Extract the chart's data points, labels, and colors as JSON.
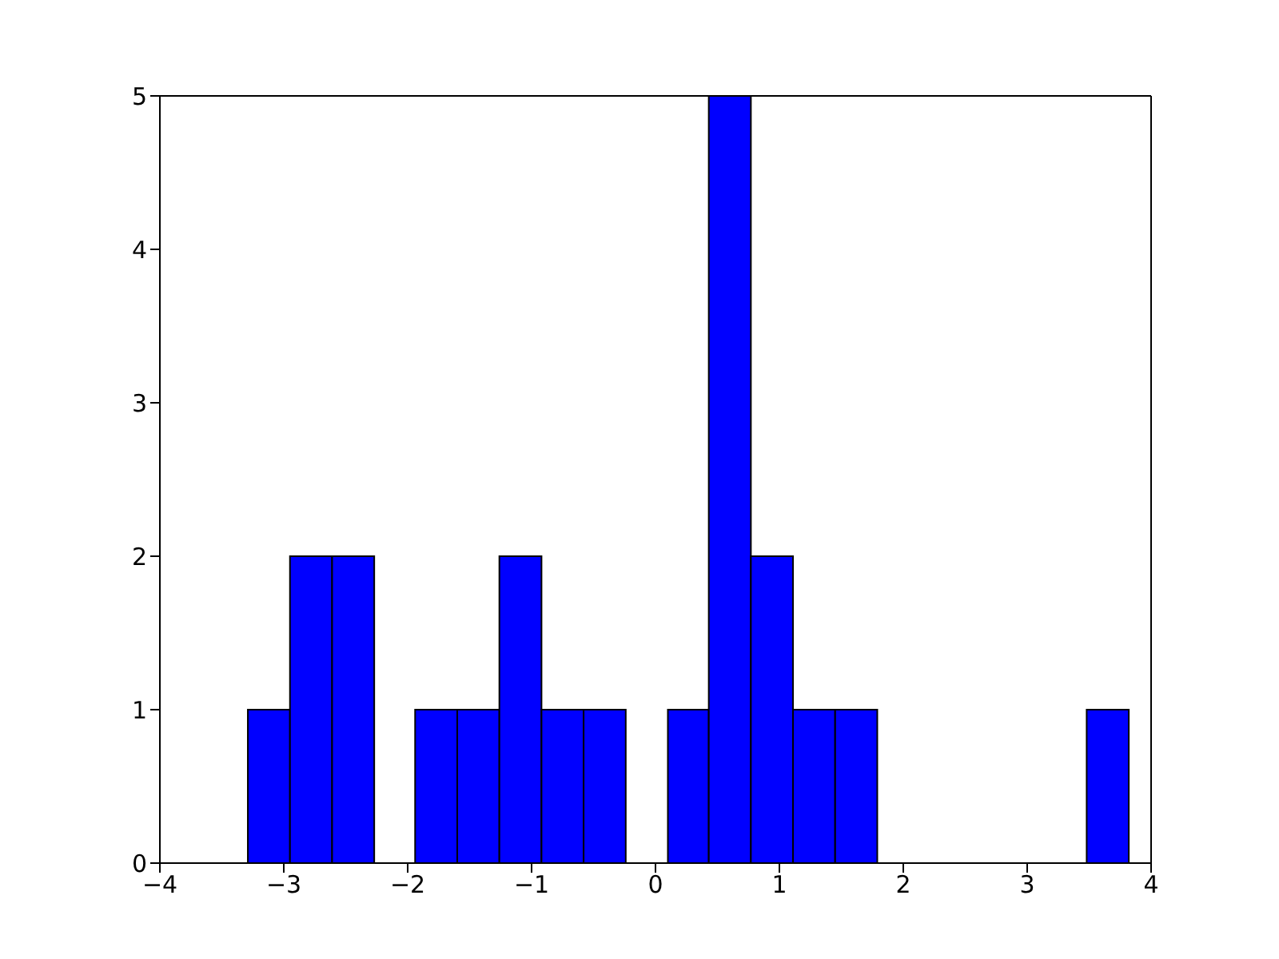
{
  "chart_data": {
    "type": "histogram",
    "bins": [
      -3.29,
      -2.95,
      -2.61,
      -2.27,
      -1.94,
      -1.6,
      -1.26,
      -0.92,
      -0.58,
      -0.24,
      0.1,
      0.43,
      0.77,
      1.11,
      1.45,
      1.79,
      3.48,
      3.82
    ],
    "values": [
      1,
      2,
      2,
      0,
      1,
      1,
      2,
      1,
      1,
      0,
      1,
      5,
      2,
      1,
      1,
      0,
      1
    ],
    "color": "#0000ff",
    "xlim": [
      -4,
      4
    ],
    "xticks": [
      {
        "value": -4,
        "label": "−4"
      },
      {
        "value": -3,
        "label": "−3"
      },
      {
        "value": -2,
        "label": "−2"
      },
      {
        "value": -1,
        "label": "−1"
      },
      0,
      1,
      2,
      3,
      4
    ],
    "ylim": [
      0,
      5
    ],
    "yticks": [
      0,
      1,
      2,
      3,
      4,
      5
    ],
    "grid": false
  }
}
